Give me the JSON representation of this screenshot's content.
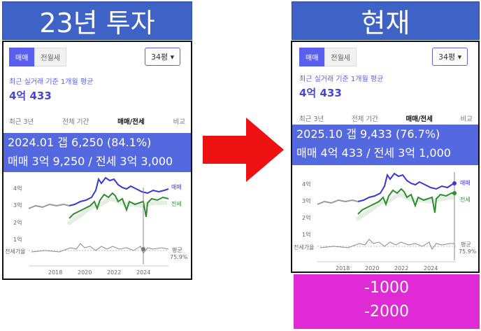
{
  "left": {
    "banner": "23년 투자",
    "tabs": [
      "매매",
      "전월세"
    ],
    "size": "34평",
    "subtitle": "최근 실거래 기준 1개월 평균",
    "price": "4억 433",
    "filters": [
      "최근 3년",
      "전체 기간",
      "매매/전세",
      "비교"
    ],
    "info": [
      "2024.01 갭 6,250 (84.1%)",
      "매매 3억 9,250 / 전세 3억 3,000"
    ],
    "yticks": [
      "4억",
      "3억",
      "2억",
      "1억"
    ],
    "ratio_label": "전세가율",
    "series_labels": [
      "매매",
      "전세"
    ],
    "avg_label": [
      "평균",
      "75.9%"
    ],
    "xticks": [
      "2018",
      "2020",
      "2022",
      "2024"
    ]
  },
  "right": {
    "banner": "현재",
    "tabs": [
      "매매",
      "전월세"
    ],
    "size": "34평",
    "subtitle": "최근 실거래 기준 1개월 평균",
    "price": "4억 433",
    "filters": [
      "최근 3년",
      "전체 기간",
      "매매/전세",
      "비교"
    ],
    "info": [
      "2025.10 갭 9,433 (76.7%)",
      "매매 4억 433 / 전세 3억 1,000"
    ],
    "yticks": [
      "4억",
      "3억",
      "2억",
      "1억"
    ],
    "ratio_label": "전세가율",
    "series_labels": [
      "매매",
      "전세"
    ],
    "avg_label": [
      "평균",
      "75.9%"
    ],
    "xticks": [
      "2018",
      "2020",
      "2022",
      "2024"
    ]
  },
  "caption": [
    "-1000",
    "-2000"
  ],
  "colors": {
    "banner": "#3f62c6",
    "accent": "#5b5ff0",
    "sale": "#3b36d8",
    "jeonse": "#2f8c2f",
    "arrow": "#ee1111",
    "caption": "#e02ad5"
  }
}
